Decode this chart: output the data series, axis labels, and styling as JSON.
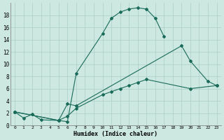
{
  "xlabel": "Humidex (Indice chaleur)",
  "xlim": [
    -0.5,
    23.5
  ],
  "ylim": [
    0,
    20
  ],
  "xticks": [
    0,
    1,
    2,
    3,
    4,
    5,
    6,
    7,
    8,
    9,
    10,
    11,
    12,
    13,
    14,
    15,
    16,
    17,
    18,
    19,
    20,
    21,
    22,
    23
  ],
  "yticks": [
    0,
    2,
    4,
    6,
    8,
    10,
    12,
    14,
    16,
    18
  ],
  "background_color": "#cce8e0",
  "grid_color": "#aacfc8",
  "line_color": "#1a6b5a",
  "series": [
    {
      "x": [
        0,
        1,
        2,
        3,
        5,
        6,
        7,
        10,
        11,
        12,
        13,
        14,
        15,
        16,
        17
      ],
      "y": [
        2.2,
        1.2,
        1.8,
        0.9,
        0.8,
        0.6,
        8.5,
        15.0,
        17.5,
        18.5,
        19.0,
        19.2,
        19.0,
        17.5,
        14.5
      ]
    },
    {
      "x": [
        0,
        5,
        6,
        7,
        19,
        20,
        22,
        23
      ],
      "y": [
        2.2,
        0.8,
        3.5,
        3.2,
        13.0,
        10.5,
        7.2,
        6.5
      ]
    },
    {
      "x": [
        0,
        5,
        6,
        7,
        10,
        11,
        12,
        13,
        14,
        15,
        20,
        23
      ],
      "y": [
        2.2,
        0.8,
        1.5,
        2.8,
        5.0,
        5.5,
        6.0,
        6.5,
        7.0,
        7.5,
        6.0,
        6.5
      ]
    }
  ]
}
